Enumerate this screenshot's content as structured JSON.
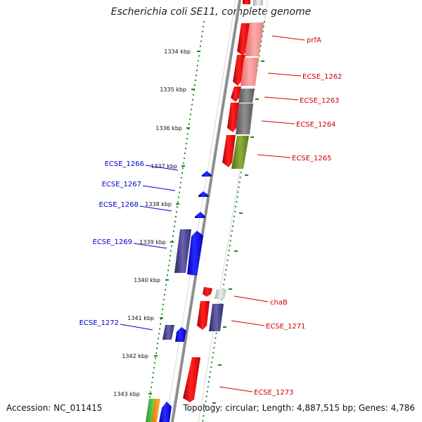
{
  "title": "Escherichia coli SE11, complete genome",
  "accession": "Accession: NC_011415",
  "topology": "Topology: circular; Length: 4,887,515 bp; Genes: 4,786",
  "colors": {
    "backbone": "#8c8c8c",
    "ruler_dots": "#1a8a1a",
    "forward_label": "#cc0000",
    "reverse_label": "#0000cc"
  },
  "kbp_ticks": [
    "1334 kbp",
    "1335 kbp",
    "1336 kbp",
    "1337 kbp",
    "1338 kbp",
    "1339 kbp",
    "1340 kbp",
    "1341 kbp",
    "1342 kbp",
    "1343 kbp"
  ],
  "forward_genes": [
    "prfA",
    "ECSE_1262",
    "ECSE_1263",
    "ECSE_1264",
    "ECSE_1265",
    "chaB",
    "ECSE_1271",
    "ECSE_1273"
  ],
  "reverse_genes": [
    "ECSE_1266",
    "ECSE_1267",
    "ECSE_1268",
    "ECSE_1269",
    "ECSE_1272"
  ]
}
